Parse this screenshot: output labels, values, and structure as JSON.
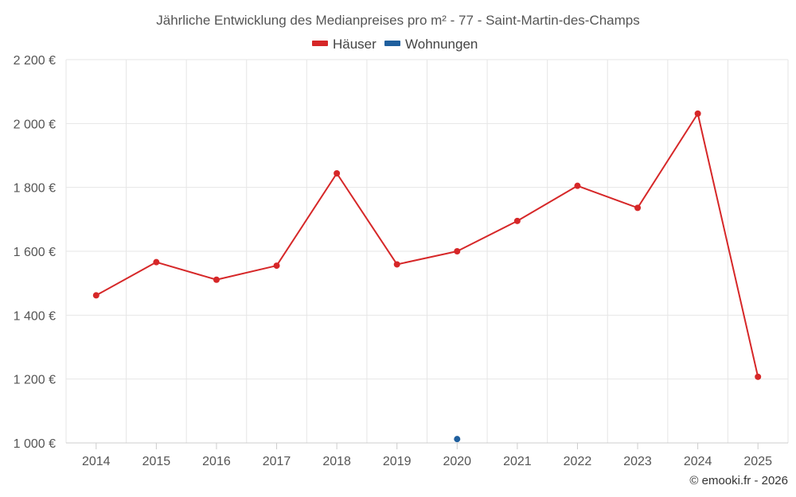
{
  "chart_data": {
    "type": "line",
    "title": "Jährliche Entwicklung des Medianpreises pro m² - 77 - Saint-Martin-des-Champs",
    "xlabel": "",
    "ylabel": "",
    "ylim": [
      1000,
      2200
    ],
    "yticks": [
      1000,
      1200,
      1400,
      1600,
      1800,
      2000,
      2200
    ],
    "ytick_labels": [
      "1 000 €",
      "1 200 €",
      "1 400 €",
      "1 600 €",
      "1 800 €",
      "2 000 €",
      "2 200 €"
    ],
    "categories": [
      "2014",
      "2015",
      "2016",
      "2017",
      "2018",
      "2019",
      "2020",
      "2021",
      "2022",
      "2023",
      "2024",
      "2025"
    ],
    "grid": true,
    "legend_position": "top-center",
    "series": [
      {
        "name": "Häuser",
        "color": "#d62728",
        "values": [
          1462,
          1566,
          1511,
          1555,
          1844,
          1559,
          1600,
          1695,
          1805,
          1736,
          2031,
          1207
        ]
      },
      {
        "name": "Wohnungen",
        "color": "#1f5f9e",
        "values": [
          null,
          null,
          null,
          null,
          null,
          null,
          1012,
          null,
          null,
          null,
          null,
          null
        ]
      }
    ],
    "credit": "© emooki.fr - 2026"
  }
}
